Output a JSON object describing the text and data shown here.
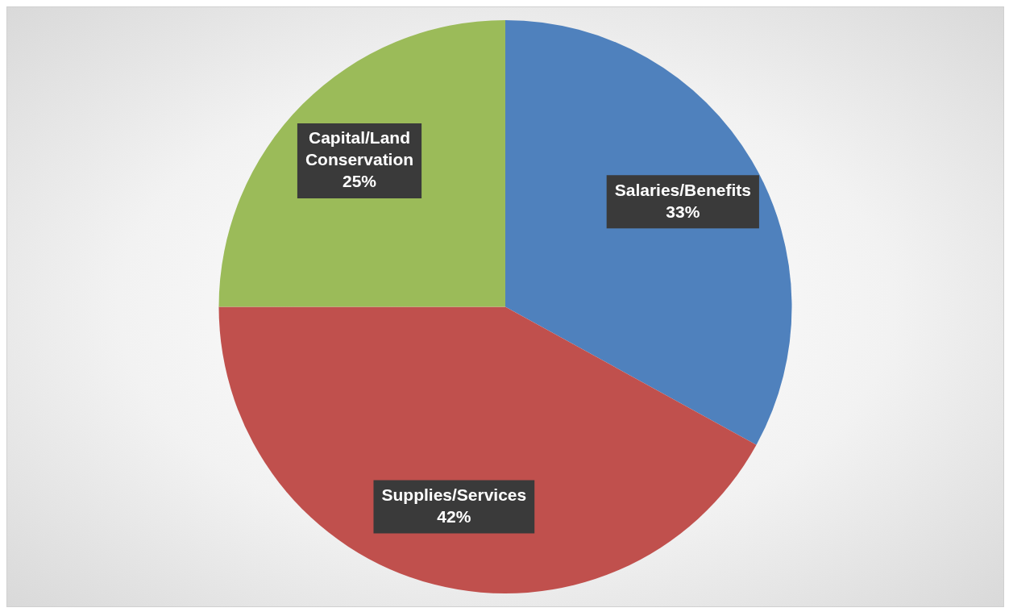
{
  "chart_data": {
    "type": "pie",
    "categories": [
      "Salaries/Benefits",
      "Supplies/Services",
      "Capital/Land Conservation"
    ],
    "values": [
      33,
      42,
      25
    ],
    "colors": [
      "#4f81bd",
      "#c0504d",
      "#9bbb59"
    ],
    "value_labels": [
      "33%",
      "42%",
      "25%"
    ],
    "legend": false
  }
}
